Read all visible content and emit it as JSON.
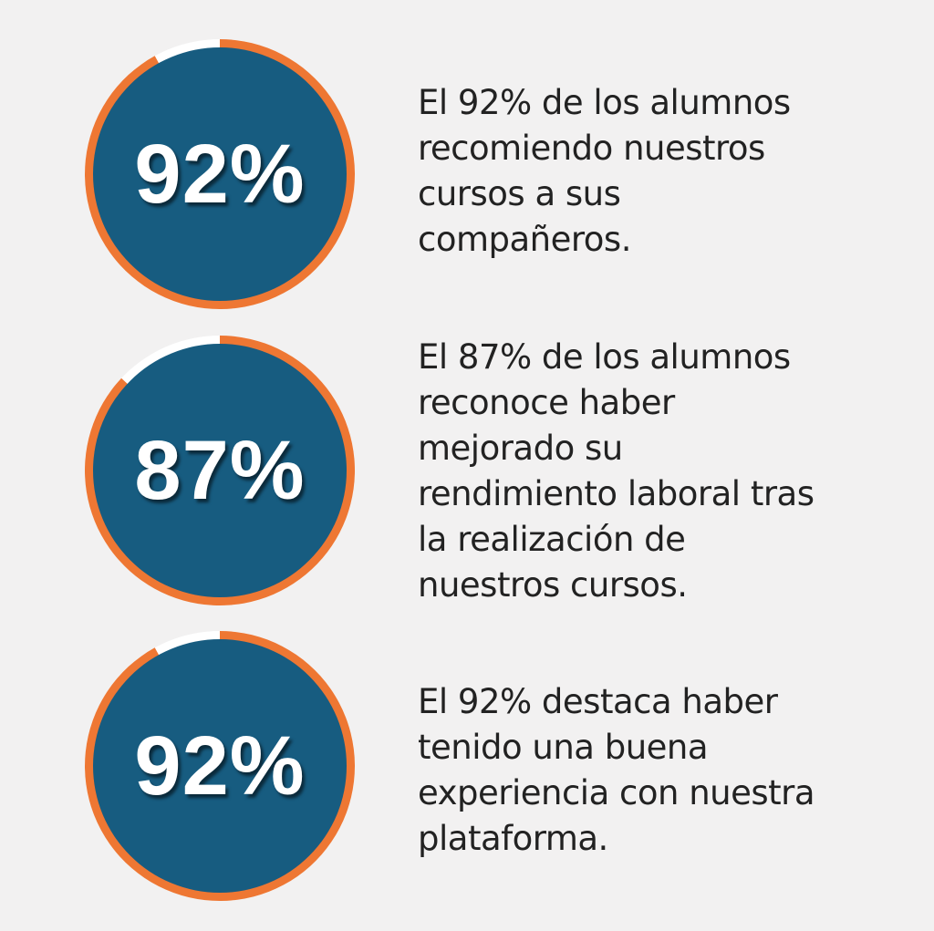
{
  "colors": {
    "background": "#f2f1f1",
    "disc": "#175c80",
    "ring": "#ee7733",
    "ring_track": "#ffffff",
    "text": "#222222"
  },
  "stats": [
    {
      "value_label": "92%",
      "fraction": 0.92,
      "text_lines": [
        "El 92% de los alumnos",
        "recomiendo nuestros",
        "cursos a sus",
        "compañeros."
      ]
    },
    {
      "value_label": "87%",
      "fraction": 0.87,
      "text_lines": [
        "El 87% de los alumnos",
        "reconoce haber",
        "mejorado su",
        "rendimiento laboral tras",
        "la realización de",
        "nuestros cursos."
      ]
    },
    {
      "value_label": "92%",
      "fraction": 0.92,
      "text_lines": [
        "El 92% destaca haber",
        "tenido una buena",
        "experiencia con nuestra",
        "plataforma."
      ]
    }
  ]
}
